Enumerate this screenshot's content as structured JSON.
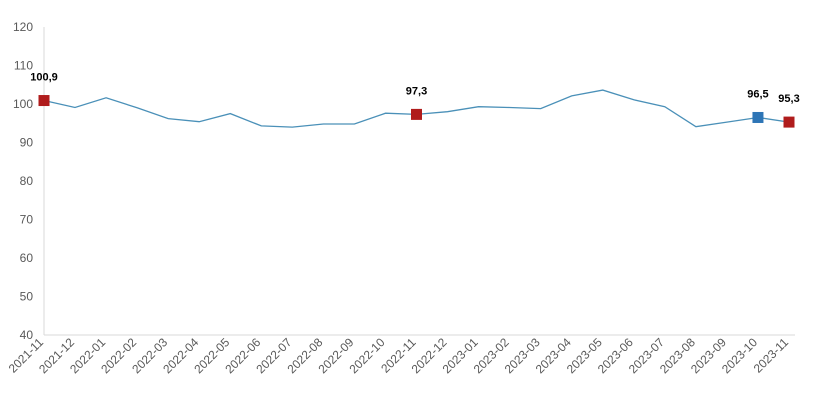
{
  "chart_data": {
    "type": "line",
    "title": "",
    "xlabel": "",
    "ylabel": "",
    "ylim": [
      40,
      120
    ],
    "yticks": [
      40,
      50,
      60,
      70,
      80,
      90,
      100,
      110,
      120
    ],
    "categories": [
      "2021-11",
      "2021-12",
      "2022-01",
      "2022-02",
      "2022-03",
      "2022-04",
      "2022-05",
      "2022-06",
      "2022-07",
      "2022-08",
      "2022-09",
      "2022-10",
      "2022-11",
      "2022-12",
      "2023-01",
      "2023-02",
      "2023-03",
      "2023-04",
      "2023-05",
      "2023-06",
      "2023-07",
      "2023-08",
      "2023-09",
      "2023-10",
      "2023-11"
    ],
    "series": [
      {
        "values": [
          100.9,
          99.1,
          101.6,
          99.0,
          96.2,
          95.4,
          97.5,
          94.3,
          94.0,
          94.8,
          94.8,
          97.6,
          97.3,
          98.0,
          99.3,
          99.1,
          98.8,
          102.1,
          103.6,
          101.1,
          99.3,
          94.1,
          95.3,
          96.5,
          95.3
        ],
        "color": "#4a90b8"
      }
    ],
    "markers": [
      {
        "index": 0,
        "label": "100,9",
        "color": "#b01c1c"
      },
      {
        "index": 12,
        "label": "97,3",
        "color": "#b01c1c"
      },
      {
        "index": 23,
        "label": "96,5",
        "color": "#2e75b6"
      },
      {
        "index": 24,
        "label": "95,3",
        "color": "#b01c1c"
      }
    ],
    "grid": false,
    "legend": "none"
  }
}
